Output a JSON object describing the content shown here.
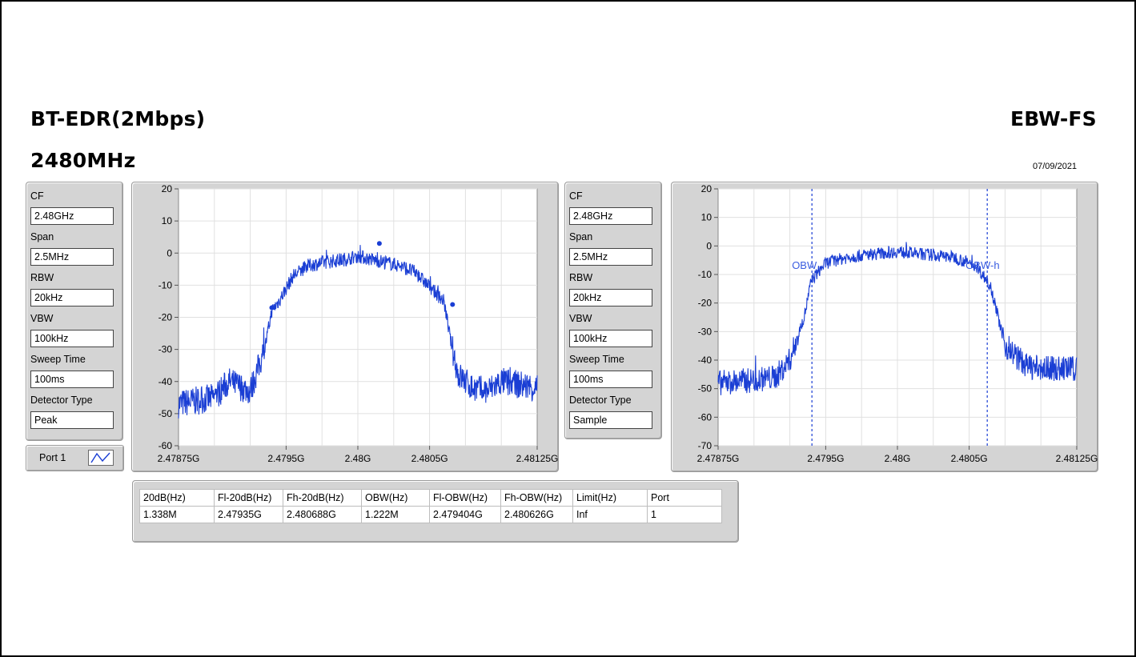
{
  "header": {
    "mode": "BT-EDR(2Mbps)",
    "frequency": "2480MHz",
    "test_name": "EBW-FS",
    "date": "07/09/2021"
  },
  "left_settings": {
    "items": [
      {
        "label": "CF",
        "value": "2.48GHz"
      },
      {
        "label": "Span",
        "value": "2.5MHz"
      },
      {
        "label": "RBW",
        "value": "20kHz"
      },
      {
        "label": "VBW",
        "value": "100kHz"
      },
      {
        "label": "Sweep Time",
        "value": "100ms"
      },
      {
        "label": "Detector Type",
        "value": "Peak"
      }
    ]
  },
  "right_settings": {
    "items": [
      {
        "label": "CF",
        "value": "2.48GHz"
      },
      {
        "label": "Span",
        "value": "2.5MHz"
      },
      {
        "label": "RBW",
        "value": "20kHz"
      },
      {
        "label": "VBW",
        "value": "100kHz"
      },
      {
        "label": "Sweep Time",
        "value": "100ms"
      },
      {
        "label": "Detector Type",
        "value": "Sample"
      }
    ]
  },
  "port_button": {
    "label": "Port 1",
    "icon": "waveform-icon"
  },
  "colors": {
    "trace": "#1a3ed4",
    "marker_line": "#1a3ed4",
    "marker_text": "#3a5ce0",
    "panel": "#d4d4d4",
    "plot_bg": "#ffffff",
    "grid": "#e0e0e0"
  },
  "chart_data": [
    {
      "type": "line",
      "name": "peak-spectrum",
      "xlim": [
        2.47875,
        2.48125
      ],
      "ylim": [
        -60,
        20
      ],
      "xticks": [
        "2.47875G",
        "2.4795G",
        "2.48G",
        "2.4805G",
        "2.48125G"
      ],
      "xtick_values": [
        2.47875,
        2.4795,
        2.48,
        2.4805,
        2.48125
      ],
      "yticks": [
        "20",
        "10",
        "0",
        "-10",
        "-20",
        "-30",
        "-40",
        "-50",
        "-60"
      ],
      "ytick_values": [
        20,
        10,
        0,
        -10,
        -20,
        -30,
        -40,
        -50,
        -60
      ],
      "grid": true,
      "x": [
        2.47875,
        2.479,
        2.4791,
        2.47925,
        2.47935,
        2.4794,
        2.47945,
        2.47955,
        2.47965,
        2.47975,
        2.4799,
        2.48,
        2.4801,
        2.4802,
        2.4803,
        2.4804,
        2.4806,
        2.48065,
        2.4807,
        2.4808,
        2.4809,
        2.481,
        2.48125
      ],
      "y": [
        -47,
        -45,
        -40,
        -43,
        -30,
        -18,
        -15,
        -7,
        -4,
        -3,
        -2,
        -1,
        -2,
        -3,
        -4,
        -6,
        -15,
        -28,
        -38,
        -42,
        -43,
        -40,
        -42
      ],
      "markers": [
        {
          "x": 2.4794,
          "y": -17
        },
        {
          "x": 2.48015,
          "y": 3
        },
        {
          "x": 2.48066,
          "y": -16
        }
      ]
    },
    {
      "type": "line",
      "name": "sample-spectrum",
      "xlim": [
        2.47875,
        2.48125
      ],
      "ylim": [
        -70,
        20
      ],
      "xticks": [
        "2.47875G",
        "2.4795G",
        "2.48G",
        "2.4805G",
        "2.48125G"
      ],
      "xtick_values": [
        2.47875,
        2.4795,
        2.48,
        2.4805,
        2.48125
      ],
      "yticks": [
        "20",
        "10",
        "0",
        "-10",
        "-20",
        "-30",
        "-40",
        "-50",
        "-60",
        "-70"
      ],
      "ytick_values": [
        20,
        10,
        0,
        -10,
        -20,
        -30,
        -40,
        -50,
        -60,
        -70
      ],
      "grid": true,
      "x": [
        2.47875,
        2.479,
        2.47915,
        2.47925,
        2.47935,
        2.4794,
        2.4795,
        2.47965,
        2.4798,
        2.48,
        2.4802,
        2.4804,
        2.48055,
        2.48065,
        2.48075,
        2.4809,
        2.481,
        2.48125
      ],
      "y": [
        -48,
        -47,
        -46,
        -40,
        -25,
        -12,
        -6,
        -4,
        -3,
        -2,
        -3,
        -4,
        -7,
        -14,
        -35,
        -42,
        -43,
        -43
      ],
      "vlines": [
        {
          "x": 2.479404,
          "label": "OBW"
        },
        {
          "x": 2.480626,
          "label": "OBW-h"
        }
      ]
    }
  ],
  "results_table": {
    "headers": [
      "20dB(Hz)",
      "Fl-20dB(Hz)",
      "Fh-20dB(Hz)",
      "OBW(Hz)",
      "Fl-OBW(Hz)",
      "Fh-OBW(Hz)",
      "Limit(Hz)",
      "Port"
    ],
    "rows": [
      [
        "1.338M",
        "2.47935G",
        "2.480688G",
        "1.222M",
        "2.479404G",
        "2.480626G",
        "Inf",
        "1"
      ]
    ]
  }
}
